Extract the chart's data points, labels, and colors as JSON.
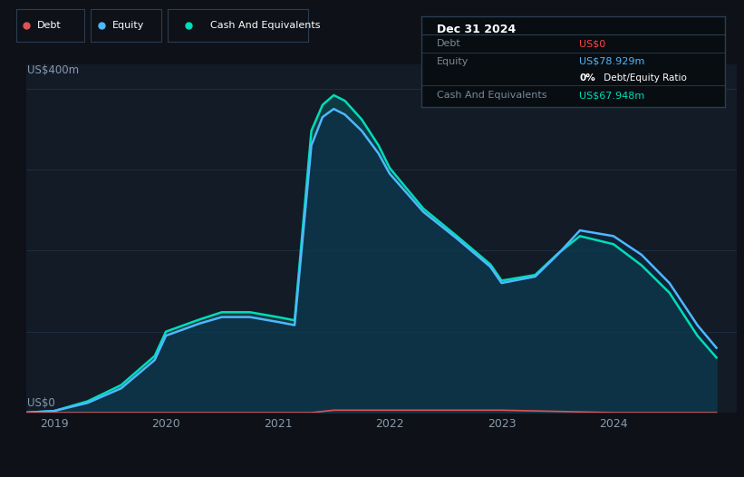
{
  "bg_color": "#0e1117",
  "plot_bg_color": "#131b27",
  "grid_color": "#1e2d3d",
  "ylabel_text": "US$400m",
  "y0_text": "US$0",
  "x_ticks": [
    2019,
    2020,
    2021,
    2022,
    2023,
    2024
  ],
  "tooltip": {
    "date": "Dec 31 2024",
    "debt_label": "Debt",
    "debt_value": "US$0",
    "debt_color": "#ff4444",
    "equity_label": "Equity",
    "equity_value": "US$78.929m",
    "equity_color": "#4db8ff",
    "ratio_label": "0%",
    "ratio_rest": " Debt/Equity Ratio",
    "cash_label": "Cash And Equivalents",
    "cash_value": "US$67.948m",
    "cash_color": "#00ddb8"
  },
  "legend": [
    {
      "label": "Debt",
      "color": "#e05252"
    },
    {
      "label": "Equity",
      "color": "#4db8ff"
    },
    {
      "label": "Cash And Equivalents",
      "color": "#00ddb8"
    }
  ],
  "debt_x": [
    2018.75,
    2019.0,
    2020.0,
    2021.0,
    2021.3,
    2021.5,
    2022.0,
    2023.0,
    2024.0,
    2024.92
  ],
  "debt_y": [
    0,
    0,
    0,
    0,
    0,
    3,
    3,
    3,
    0,
    0
  ],
  "equity_x": [
    2018.75,
    2019.0,
    2019.3,
    2019.6,
    2019.9,
    2020.0,
    2020.3,
    2020.5,
    2020.75,
    2021.0,
    2021.15,
    2021.3,
    2021.4,
    2021.5,
    2021.6,
    2021.75,
    2021.9,
    2022.0,
    2022.3,
    2022.6,
    2022.9,
    2023.0,
    2023.3,
    2023.5,
    2023.7,
    2024.0,
    2024.25,
    2024.5,
    2024.75,
    2024.92
  ],
  "equity_y": [
    0,
    2,
    12,
    30,
    65,
    95,
    110,
    118,
    118,
    112,
    108,
    330,
    365,
    375,
    368,
    348,
    320,
    295,
    248,
    215,
    180,
    160,
    168,
    195,
    225,
    218,
    195,
    160,
    108,
    80
  ],
  "cash_x": [
    2018.75,
    2019.0,
    2019.3,
    2019.6,
    2019.9,
    2020.0,
    2020.3,
    2020.5,
    2020.75,
    2021.0,
    2021.15,
    2021.3,
    2021.4,
    2021.5,
    2021.6,
    2021.75,
    2021.9,
    2022.0,
    2022.3,
    2022.6,
    2022.9,
    2023.0,
    2023.3,
    2023.5,
    2023.7,
    2024.0,
    2024.25,
    2024.5,
    2024.75,
    2024.92
  ],
  "cash_y": [
    0,
    2,
    14,
    34,
    70,
    100,
    115,
    124,
    124,
    118,
    114,
    348,
    380,
    392,
    385,
    362,
    330,
    302,
    252,
    218,
    183,
    163,
    170,
    196,
    218,
    208,
    182,
    148,
    95,
    68
  ],
  "ylim": [
    0,
    430
  ],
  "xlim": [
    2018.75,
    2025.1
  ]
}
